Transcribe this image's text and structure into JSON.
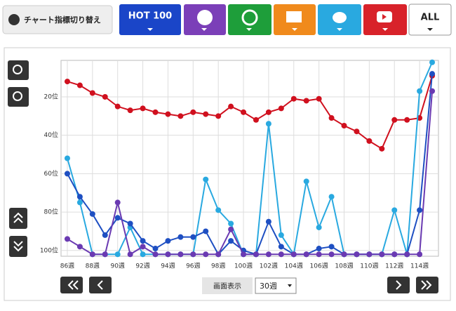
{
  "toolbar": {
    "label": "チャート指標切り替え",
    "hot100": "HOT 100",
    "all": "ALL"
  },
  "controls": {
    "display_label": "画面表示",
    "period": "30週"
  },
  "chart_data": {
    "type": "line",
    "categories": [
      "86週",
      null,
      "88週",
      null,
      "90週",
      null,
      "92週",
      null,
      "94週",
      null,
      "96週",
      null,
      "98週",
      null,
      "100週",
      null,
      "102週",
      null,
      "104週",
      null,
      "106週",
      null,
      "108週",
      null,
      "110週",
      null,
      "112週",
      null,
      "114週",
      null
    ],
    "ylim": [
      103,
      1
    ],
    "yticks": [
      {
        "value": 20,
        "label": "20位"
      },
      {
        "value": 40,
        "label": "40位"
      },
      {
        "value": 60,
        "label": "60位"
      },
      {
        "value": 80,
        "label": "80位"
      },
      {
        "value": 100,
        "label": "100位"
      }
    ],
    "grid": true,
    "series": [
      {
        "color": "#d0101e",
        "values": [
          12,
          14,
          18,
          20,
          25,
          27,
          26,
          28,
          29,
          30,
          28,
          29,
          30,
          25,
          28,
          32,
          28,
          26,
          21,
          22,
          21,
          31,
          35,
          38,
          43,
          47,
          32,
          32,
          31,
          9
        ]
      },
      {
        "color": "#29a9e0",
        "values": [
          52,
          75,
          102,
          102,
          102,
          88,
          102,
          102,
          102,
          102,
          102,
          63,
          79,
          86,
          102,
          102,
          34,
          92,
          102,
          64,
          88,
          72,
          102,
          102,
          102,
          102,
          79,
          102,
          17,
          2
        ]
      },
      {
        "color": "#1e4fc2",
        "values": [
          60,
          72,
          81,
          92,
          83,
          86,
          95,
          99,
          95,
          93,
          93,
          90,
          102,
          95,
          100,
          102,
          85,
          98,
          102,
          102,
          99,
          98,
          102,
          102,
          102,
          102,
          102,
          102,
          79,
          8
        ]
      },
      {
        "color": "#6a3ab2",
        "values": [
          94,
          98,
          102,
          102,
          75,
          102,
          98,
          102,
          102,
          102,
          102,
          102,
          102,
          89,
          102,
          102,
          102,
          102,
          102,
          102,
          102,
          102,
          102,
          102,
          102,
          102,
          102,
          102,
          102,
          17
        ]
      }
    ]
  }
}
